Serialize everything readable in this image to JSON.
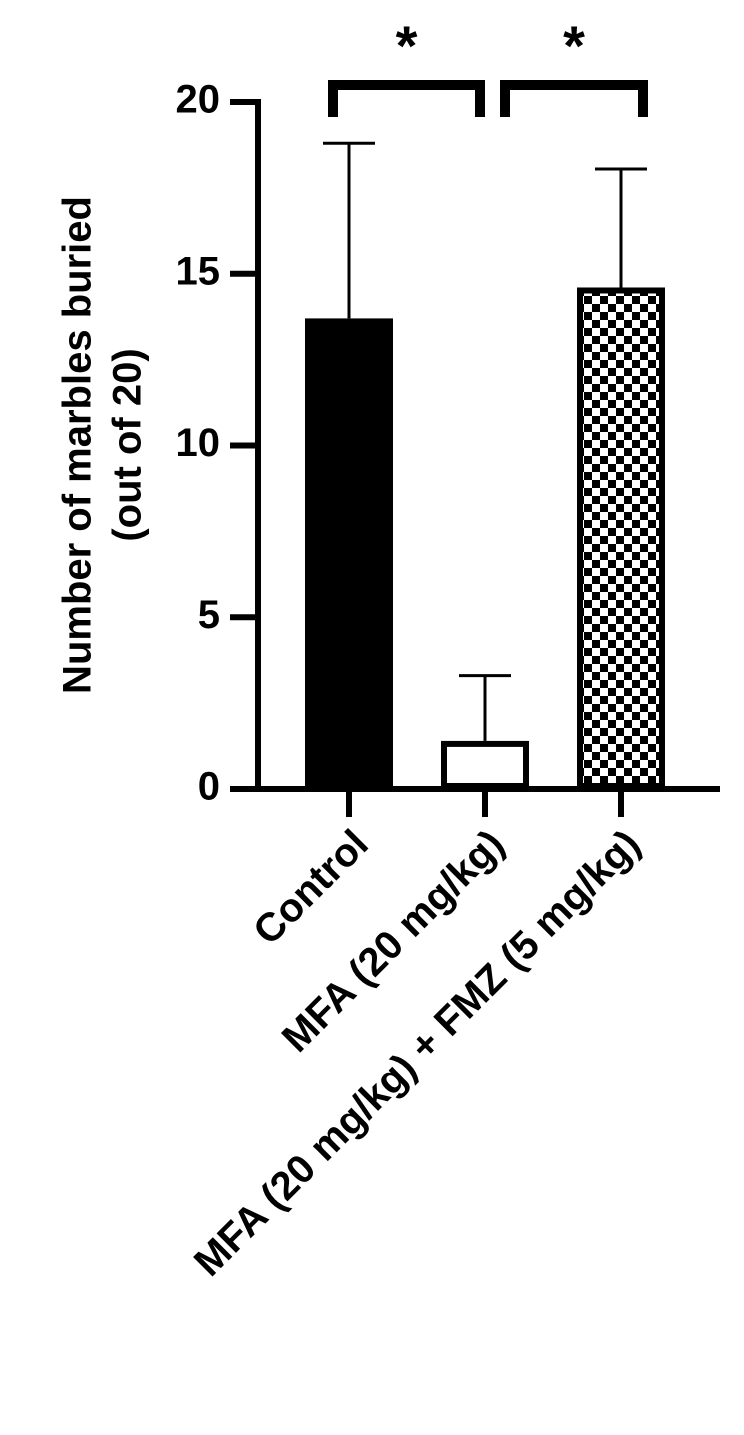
{
  "chart_data": {
    "type": "bar",
    "ylabel": [
      "Number of marbles buried",
      "(out of 20)"
    ],
    "categories": [
      "Control",
      "MFA (20 mg/kg)",
      "MFA (20 mg/kg) + FMZ (5 mg/kg)"
    ],
    "values": [
      13.7,
      1.4,
      14.6
    ],
    "errors": [
      5.1,
      1.9,
      3.45
    ],
    "color": "#000000",
    "patterns": [
      "solid",
      "open",
      "checkered"
    ],
    "ylim": [
      0,
      20
    ],
    "yticks": [
      0,
      5,
      10,
      15,
      20
    ],
    "annotations": [
      "*",
      "*"
    ]
  }
}
